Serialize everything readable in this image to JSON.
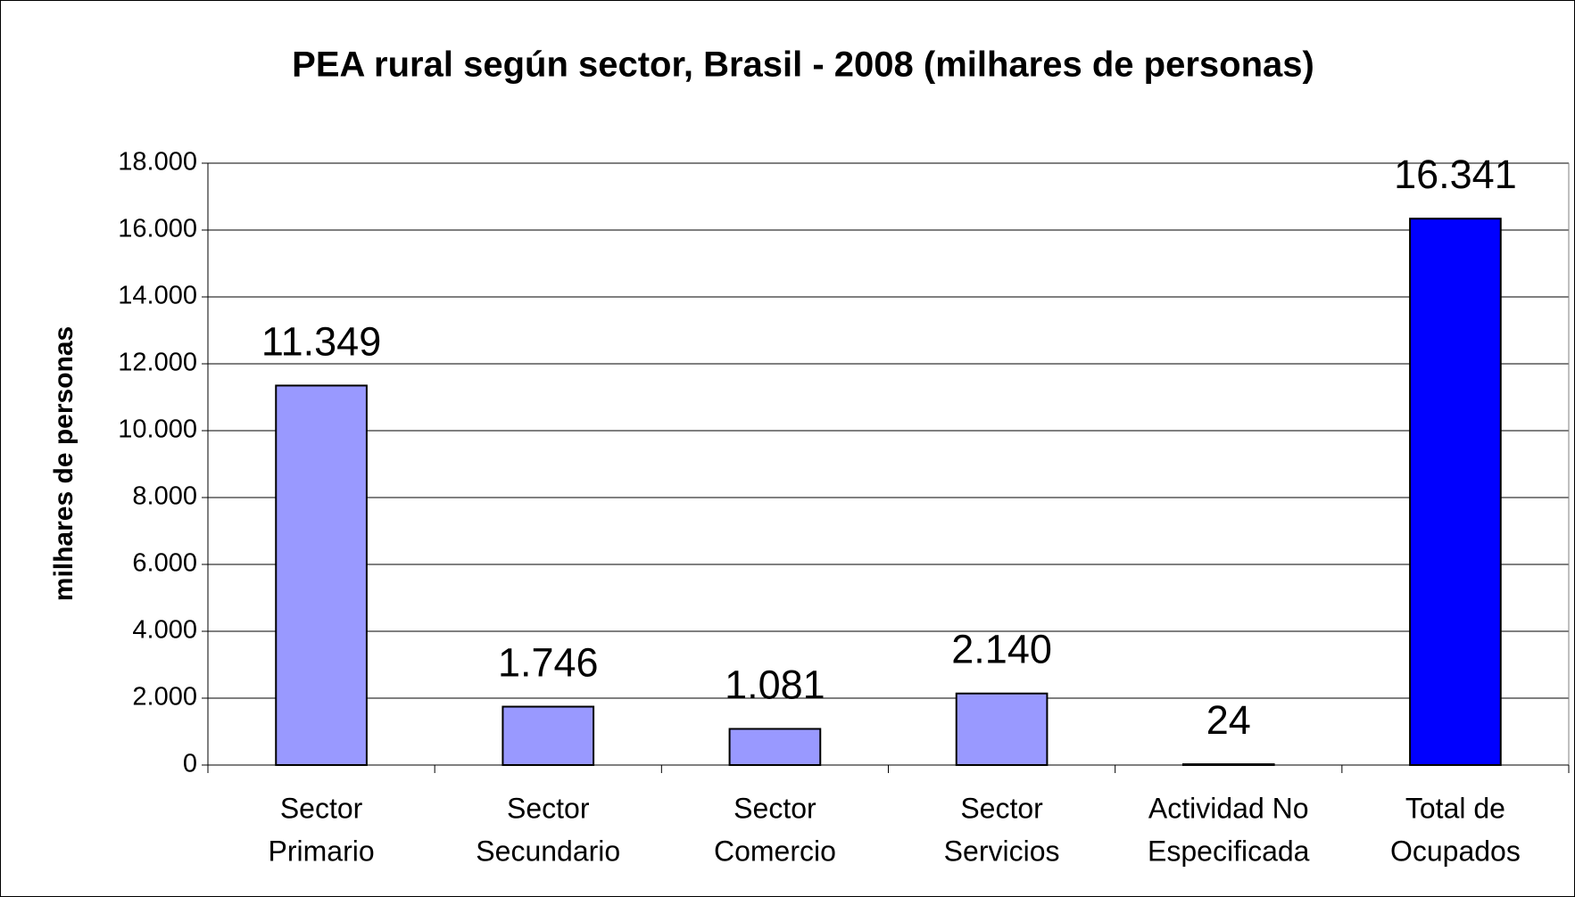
{
  "chart_data": {
    "type": "bar",
    "title": "PEA rural según sector, Brasil - 2008 (milhares de personas)",
    "ylabel": "milhares de personas",
    "categories": [
      [
        "Sector",
        "Primario"
      ],
      [
        "Sector",
        "Secundario"
      ],
      [
        "Sector",
        "Comercio"
      ],
      [
        "Sector",
        "Servicios"
      ],
      [
        "Actividad No",
        "Especificada"
      ],
      [
        "Total de",
        "Ocupados"
      ]
    ],
    "values": [
      11349,
      1746,
      1081,
      2140,
      24,
      16341
    ],
    "value_labels": [
      "11.349",
      "1.746",
      "1.081",
      "2.140",
      "24",
      "16.341"
    ],
    "colors": [
      "#9999ff",
      "#9999ff",
      "#9999ff",
      "#9999ff",
      "#9999ff",
      "#0000ff"
    ],
    "ylim": [
      0,
      18000
    ],
    "yticks": [
      0,
      {
        "value": 2000,
        "label": "2.000"
      },
      {
        "value": 4000,
        "label": "4.000"
      },
      {
        "value": 6000,
        "label": "6.000"
      },
      {
        "value": 8000,
        "label": "8.000"
      },
      {
        "value": 10000,
        "label": "10.000"
      },
      {
        "value": 12000,
        "label": "12.000"
      },
      {
        "value": 14000,
        "label": "14.000"
      },
      {
        "value": 16000,
        "label": "16.000"
      },
      {
        "value": 18000,
        "label": "18.000"
      }
    ],
    "grid": true
  }
}
